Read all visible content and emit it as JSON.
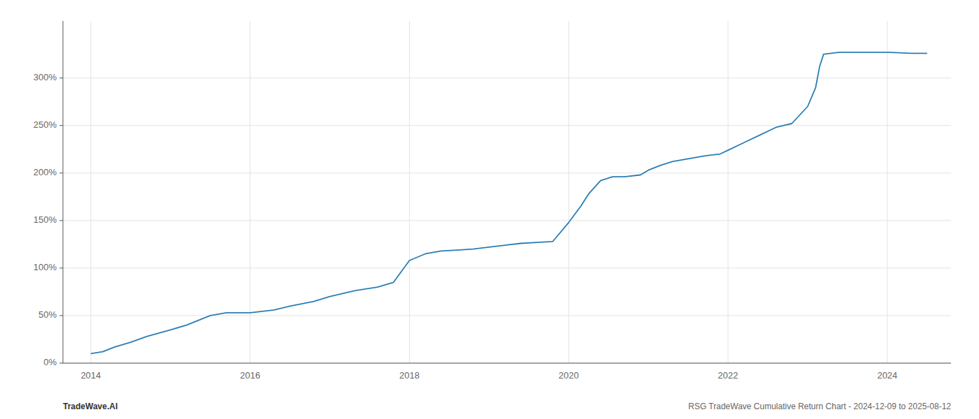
{
  "chart_data": {
    "type": "line",
    "x": [
      2014.0,
      2014.15,
      2014.3,
      2014.5,
      2014.7,
      2015.0,
      2015.2,
      2015.5,
      2015.7,
      2016.0,
      2016.3,
      2016.5,
      2016.8,
      2017.0,
      2017.3,
      2017.6,
      2017.8,
      2018.0,
      2018.2,
      2018.4,
      2018.6,
      2018.8,
      2019.0,
      2019.2,
      2019.4,
      2019.6,
      2019.8,
      2020.0,
      2020.15,
      2020.25,
      2020.4,
      2020.55,
      2020.7,
      2020.9,
      2021.0,
      2021.15,
      2021.3,
      2021.5,
      2021.7,
      2021.9,
      2022.0,
      2022.2,
      2022.4,
      2022.6,
      2022.7,
      2022.8,
      2023.0,
      2023.1,
      2023.15,
      2023.2,
      2023.4,
      2023.6,
      2023.8,
      2024.0,
      2024.3,
      2024.5
    ],
    "values": [
      10,
      12,
      17,
      22,
      28,
      35,
      40,
      50,
      53,
      53,
      56,
      60,
      65,
      70,
      76,
      80,
      85,
      108,
      115,
      118,
      119,
      120,
      122,
      124,
      126,
      127,
      128,
      148,
      165,
      178,
      192,
      196,
      196,
      198,
      203,
      208,
      212,
      215,
      218,
      220,
      224,
      232,
      240,
      248,
      250,
      252,
      270,
      290,
      312,
      325,
      327,
      327,
      327,
      327,
      326,
      326
    ],
    "color": "#2a7db5",
    "xlim": [
      2013.65,
      2024.8
    ],
    "xticks": [
      2014,
      2016,
      2018,
      2020,
      2022,
      2024
    ],
    "ylim": [
      0,
      360
    ],
    "yticks": [
      {
        "value": 0,
        "label": "0%"
      },
      {
        "value": 50,
        "label": "50%"
      },
      {
        "value": 100,
        "label": "100%"
      },
      {
        "value": 150,
        "label": "150%"
      },
      {
        "value": 200,
        "label": "200%"
      },
      {
        "value": 250,
        "label": "250%"
      },
      {
        "value": 300,
        "label": "300%"
      }
    ],
    "grid": true,
    "annotations": [
      "TradeWave.AI",
      "RSG TradeWave Cumulative Return Chart - 2024-12-09 to 2025-08-12"
    ]
  }
}
